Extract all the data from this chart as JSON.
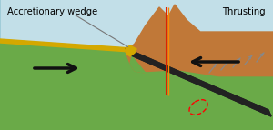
{
  "bg_color": "#c2dfe8",
  "ocean_color": "#a0ccd8",
  "oceanic_crust_color": "#6aaa48",
  "oceanic_crust_dark": "#4a8a28",
  "continent_upper_color": "#c07838",
  "continent_lower_color": "#6aaa48",
  "slab_color": "#222222",
  "sediment_color": "#d4a800",
  "mantle_gray_color": "#b0bfb0",
  "wedge_color": "#d4a800",
  "red_line_color": "#dd2200",
  "orange_line_color": "#ff8800",
  "label_accretionary": "Accretionary wedge",
  "label_thrusting": "Thrusting",
  "thrust_line_color": "#888888",
  "arrow_color": "#111111"
}
